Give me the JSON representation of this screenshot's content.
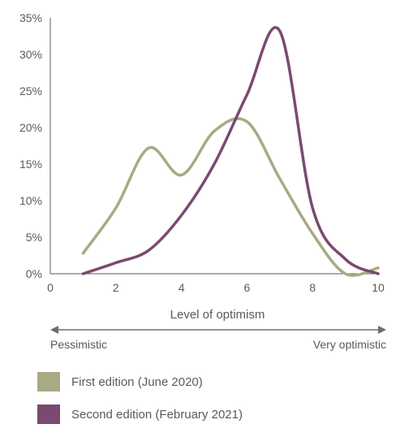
{
  "chart_data": {
    "type": "line",
    "title": "",
    "xlabel": "Level of optimism",
    "ylabel": "",
    "xlim": [
      0,
      10
    ],
    "ylim": [
      0,
      35
    ],
    "xticks": [
      0,
      2,
      4,
      6,
      8,
      10
    ],
    "xtick_labels": [
      "0",
      "2",
      "4",
      "6",
      "8",
      "10"
    ],
    "yticks": [
      0,
      5,
      10,
      15,
      20,
      25,
      30,
      35
    ],
    "ytick_labels": [
      "0%",
      "5%",
      "10%",
      "15%",
      "20%",
      "25%",
      "30%",
      "35%"
    ],
    "grid": false,
    "legend_position": "bottom-left",
    "scale_annotations": {
      "left": "Pessimistic",
      "right": "Very optimistic"
    },
    "series": [
      {
        "name": "First edition (June 2020)",
        "color": "#a9a983",
        "x": [
          1,
          2,
          3,
          4,
          5,
          6,
          7,
          8,
          9,
          10
        ],
        "y": [
          2.8,
          9.0,
          17.2,
          13.5,
          19.5,
          20.8,
          13.0,
          5.5,
          0.0,
          0.8
        ]
      },
      {
        "name": "Second edition (February 2021)",
        "color": "#7a4a70",
        "x": [
          1,
          2,
          3,
          4,
          5,
          6,
          7,
          8,
          9,
          10
        ],
        "y": [
          0.0,
          1.5,
          3.2,
          8.0,
          15.0,
          24.5,
          33.2,
          9.0,
          2.0,
          0.0
        ]
      }
    ]
  }
}
